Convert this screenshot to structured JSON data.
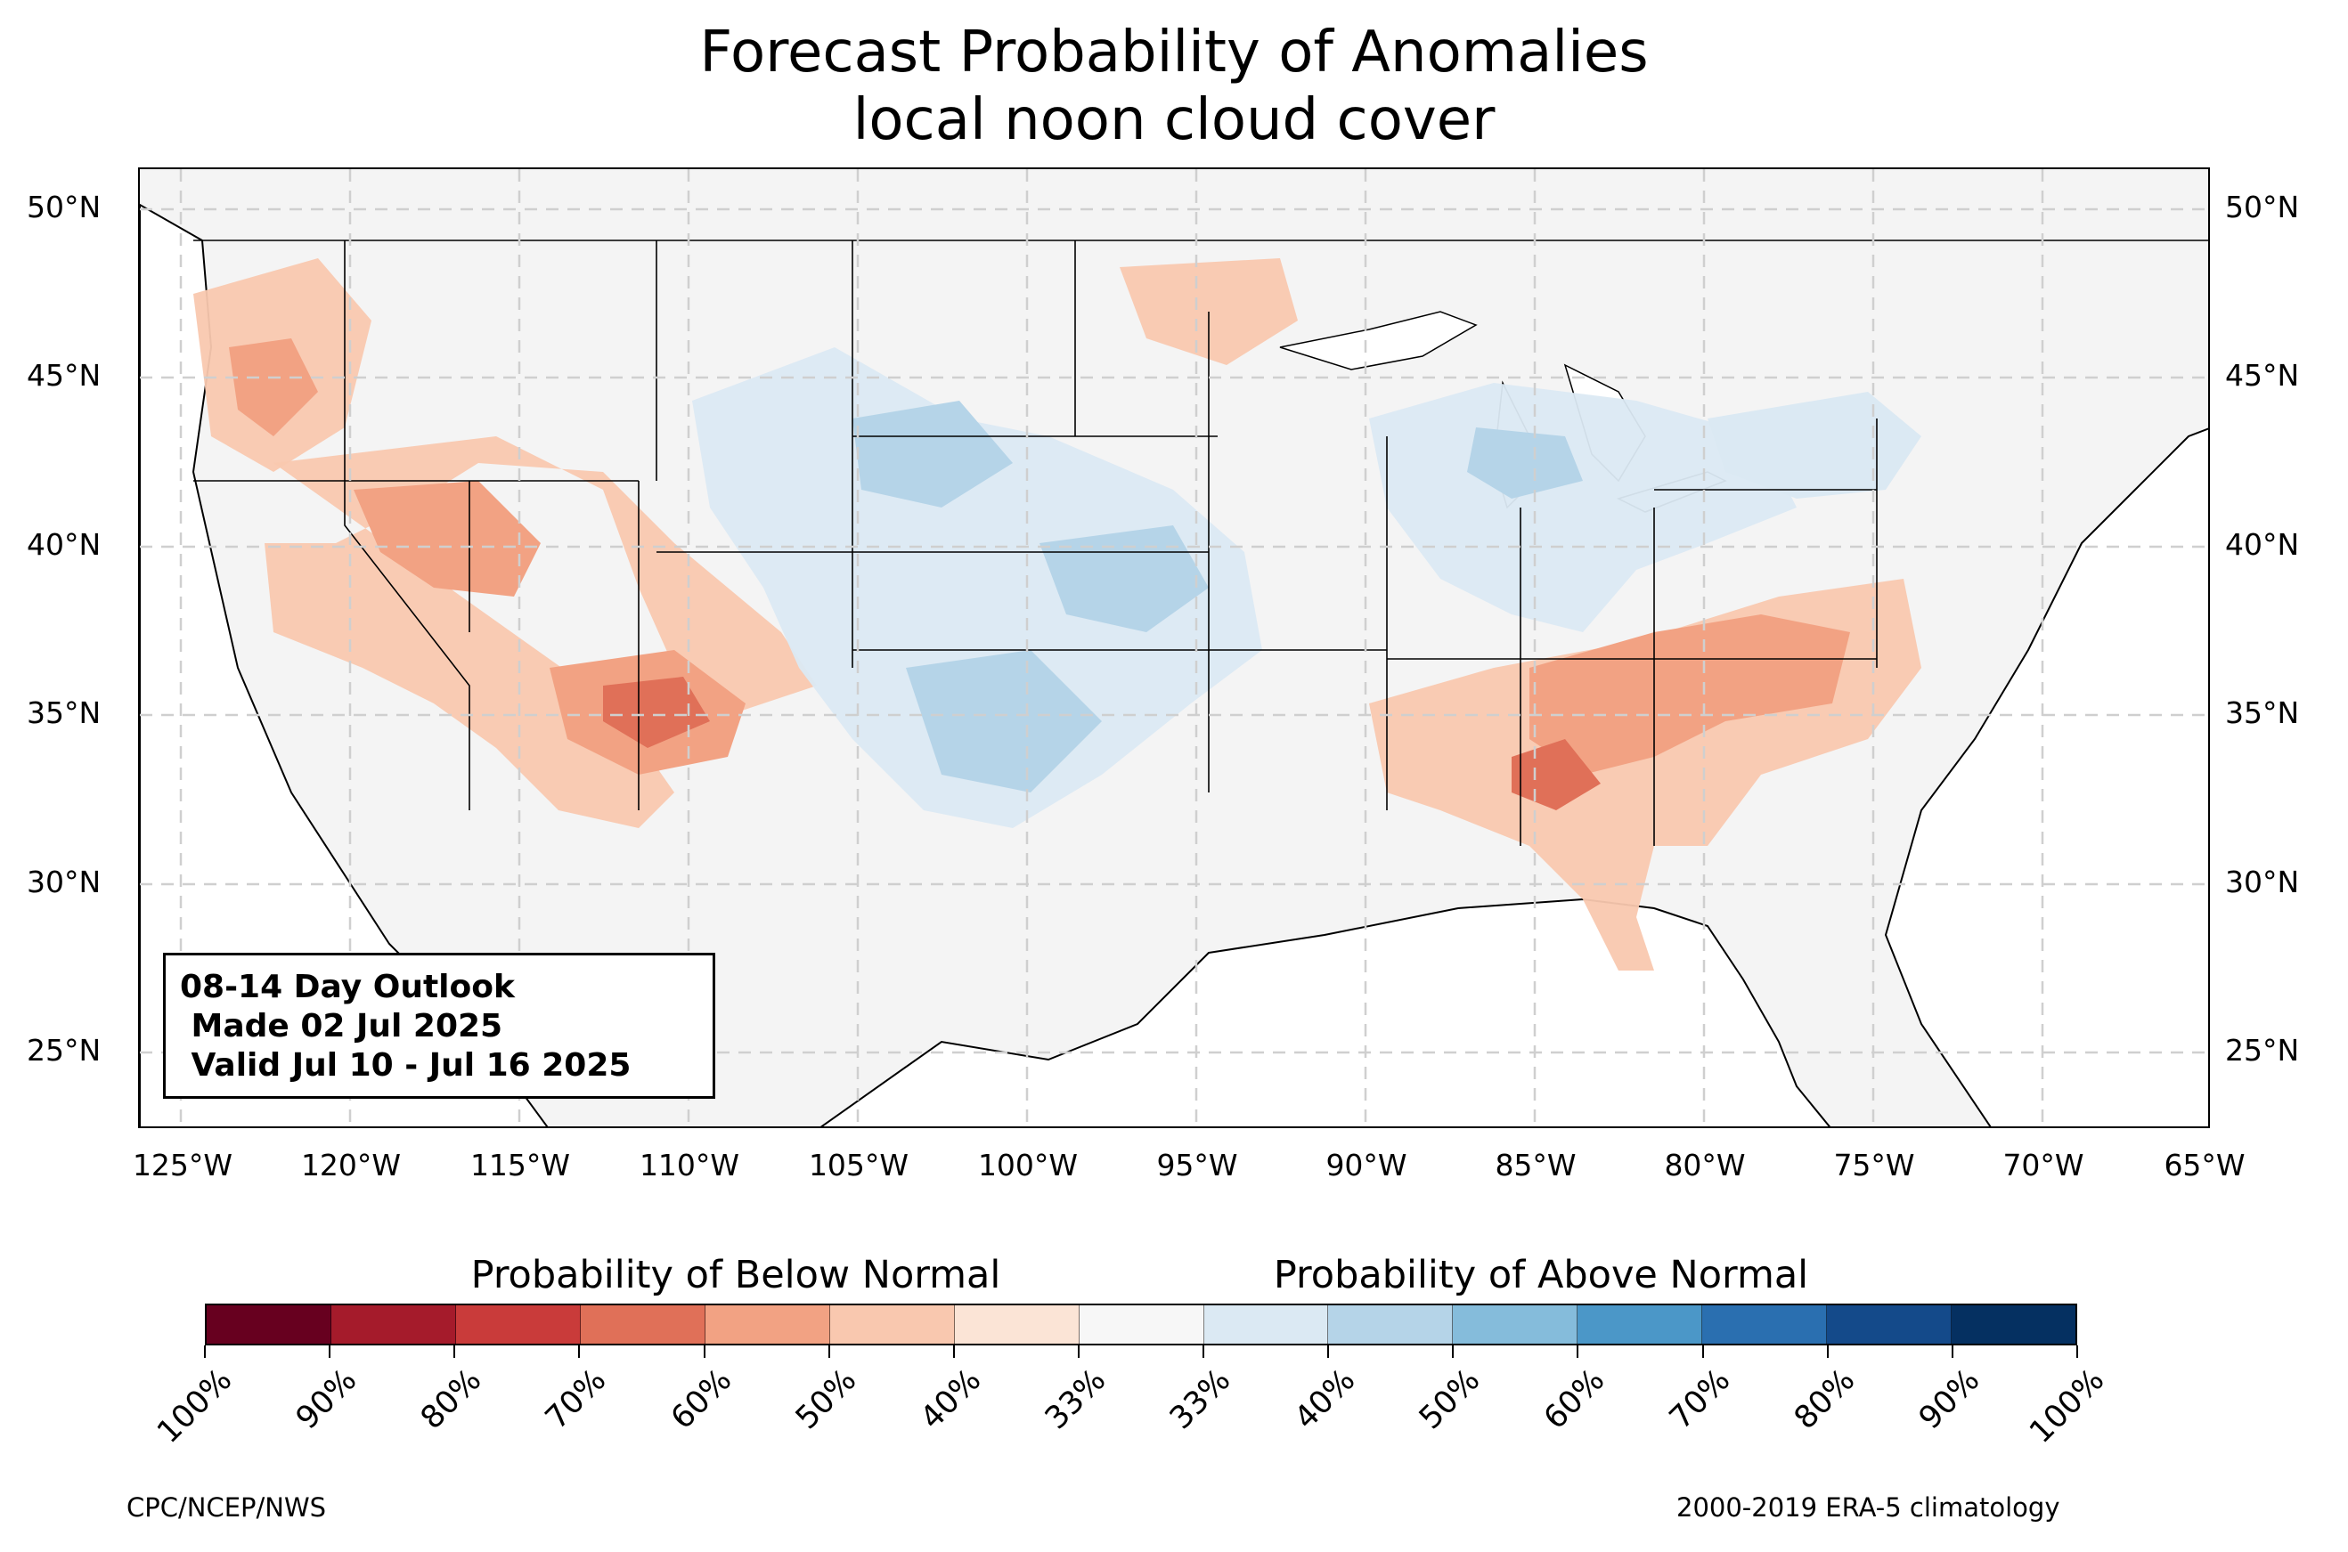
{
  "title": {
    "line1": "Forecast Probability of Anomalies",
    "line2": "local noon cloud cover"
  },
  "map": {
    "region": "Contiguous United States",
    "lat_labels": [
      "50°N",
      "45°N",
      "40°N",
      "35°N",
      "30°N",
      "25°N"
    ],
    "lon_labels": [
      "125°W",
      "120°W",
      "115°W",
      "110°W",
      "105°W",
      "100°W",
      "95°W",
      "90°W",
      "85°W",
      "80°W",
      "75°W",
      "70°W",
      "65°W"
    ],
    "gridlines": "dashed",
    "land_color": "#f4f4f4"
  },
  "outlook": {
    "line1": "08-14 Day Outlook",
    "line2": " Made 02 Jul 2025",
    "line3": " Valid Jul 10 - Jul 16 2025"
  },
  "colorbar": {
    "below_label": "Probability of Below Normal",
    "above_label": "Probability of Above Normal",
    "tick_labels": [
      "100%",
      "90%",
      "80%",
      "70%",
      "60%",
      "50%",
      "40%",
      "33%",
      "33%",
      "40%",
      "50%",
      "60%",
      "70%",
      "80%",
      "90%",
      "100%"
    ],
    "colors": [
      "#67001f",
      "#a51b2b",
      "#c93b3a",
      "#e07058",
      "#f2a283",
      "#f9c8af",
      "#fbe4d6",
      "#f7f7f7",
      "#dbe9f3",
      "#b5d4e8",
      "#85bcdb",
      "#4b97c8",
      "#2a6fb0",
      "#144a8a",
      "#053061"
    ]
  },
  "credits": {
    "left": "CPC/NCEP/NWS",
    "right": "2000-2019 ERA-5 climatology"
  }
}
